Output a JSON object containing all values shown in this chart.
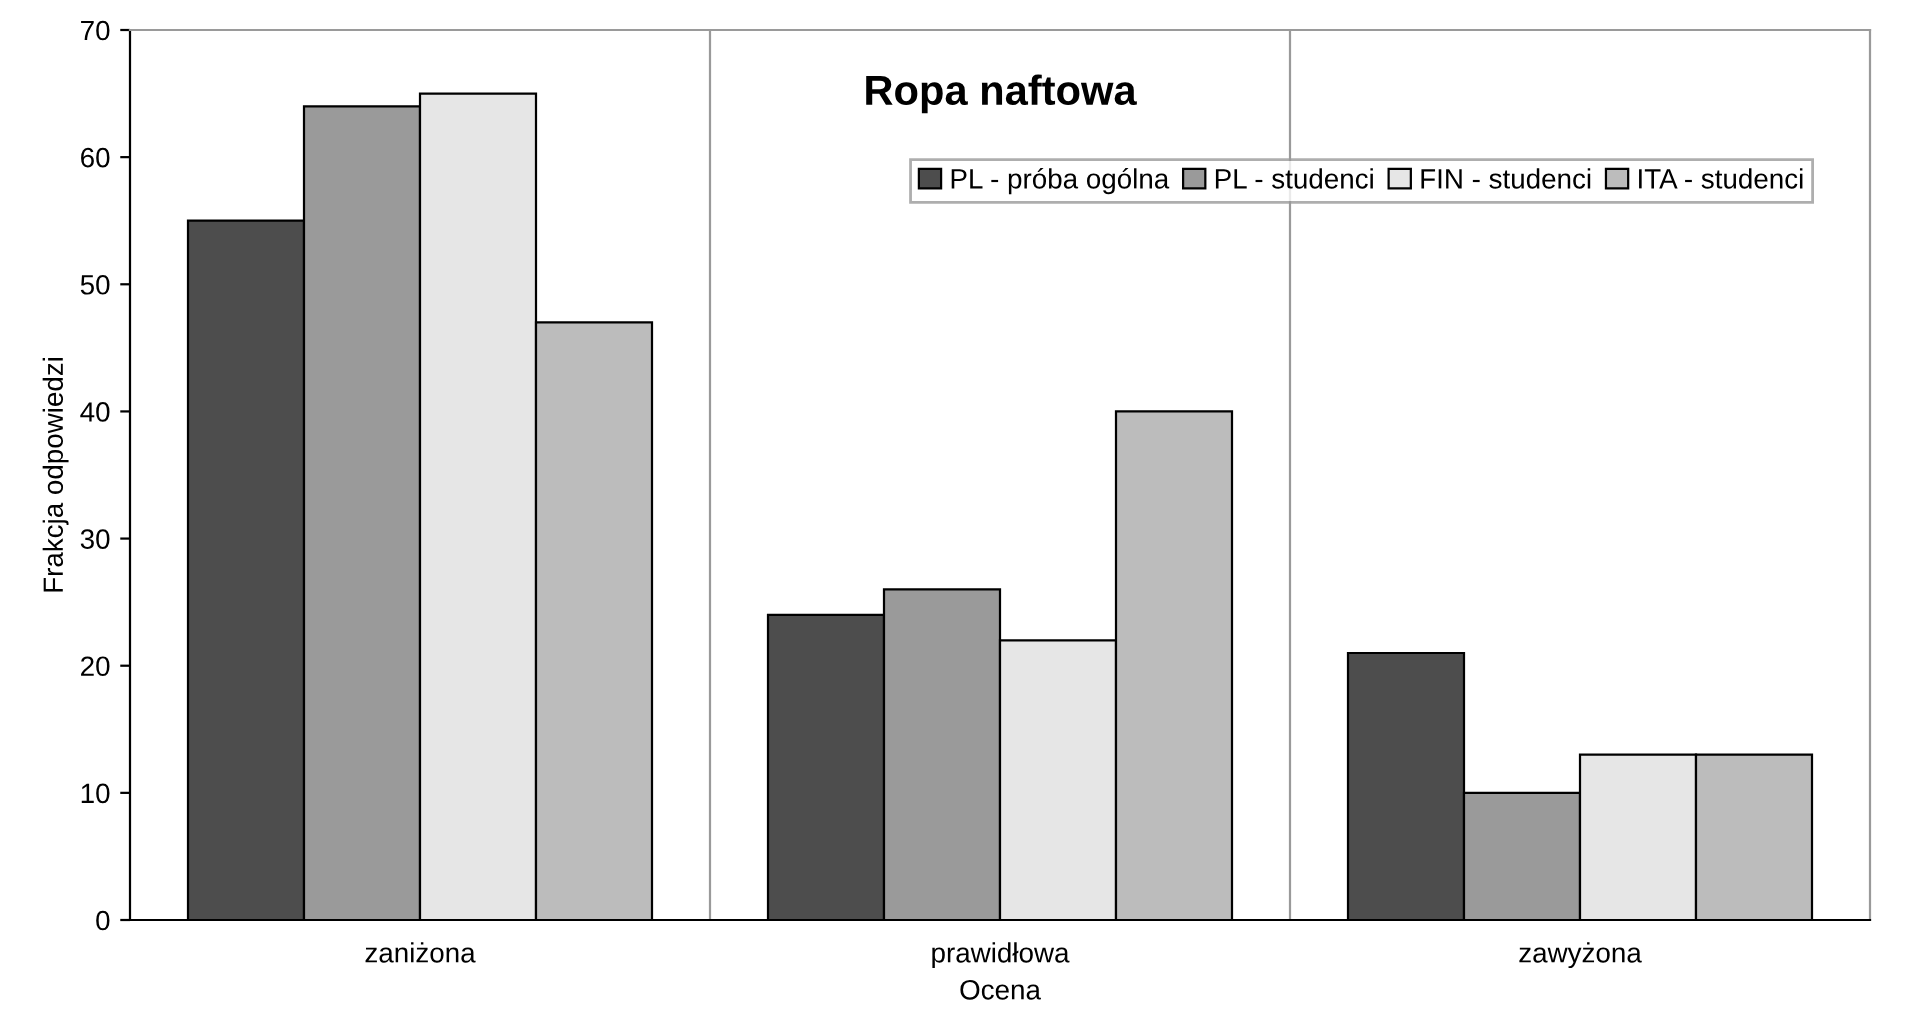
{
  "chart_data": {
    "type": "bar",
    "title": "Ropa naftowa",
    "xlabel": "Ocena",
    "ylabel": "Frakcja odpowiedzi",
    "categories": [
      "zaniżona",
      "prawidłowa",
      "zawyżona"
    ],
    "series": [
      {
        "name": "PL - próba ogólna",
        "color": "#4d4d4d",
        "values": [
          55,
          24,
          21
        ]
      },
      {
        "name": "PL - studenci",
        "color": "#9a9a9a",
        "values": [
          64,
          26,
          10
        ]
      },
      {
        "name": "FIN - studenci",
        "color": "#e6e6e6",
        "values": [
          65,
          22,
          13
        ]
      },
      {
        "name": "ITA - studenci",
        "color": "#bcbcbc",
        "values": [
          47,
          40,
          13
        ]
      }
    ],
    "ylim": [
      0,
      70
    ],
    "yticks": [
      0,
      10,
      20,
      30,
      40,
      50,
      60,
      70
    ],
    "grid": "x",
    "legend": "top right"
  }
}
